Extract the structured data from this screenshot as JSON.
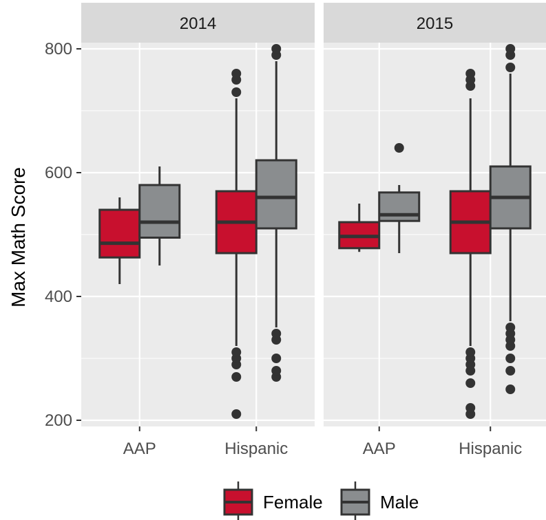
{
  "chart_data": {
    "type": "boxplot",
    "ylabel": "Max Math Score",
    "xlabel": "",
    "ylim": [
      190,
      810
    ],
    "yticks": [
      200,
      400,
      600,
      800
    ],
    "facets": [
      "2014",
      "2015"
    ],
    "categories": [
      "AAP",
      "Hispanic"
    ],
    "legend": {
      "position": "bottom",
      "entries": [
        {
          "name": "Female",
          "color": "#c8102e"
        },
        {
          "name": "Male",
          "color": "#8a8d8f"
        }
      ]
    },
    "series": [
      {
        "name": "Female",
        "color": "#c8102e",
        "boxes": {
          "2014": {
            "AAP": {
              "whisker_low": 420,
              "q1": 463,
              "median": 486,
              "q3": 540,
              "whisker_high": 560,
              "outliers": []
            },
            "Hispanic": {
              "whisker_low": 320,
              "q1": 470,
              "median": 520,
              "q3": 570,
              "whisker_high": 720,
              "outliers": [
                210,
                270,
                290,
                300,
                310,
                730,
                750,
                760
              ]
            }
          },
          "2015": {
            "AAP": {
              "whisker_low": 472,
              "q1": 478,
              "median": 497,
              "q3": 520,
              "whisker_high": 550,
              "outliers": []
            },
            "Hispanic": {
              "whisker_low": 320,
              "q1": 470,
              "median": 520,
              "q3": 570,
              "whisker_high": 720,
              "outliers": [
                210,
                220,
                260,
                280,
                290,
                300,
                310,
                740,
                750,
                760
              ]
            }
          }
        }
      },
      {
        "name": "Male",
        "color": "#8a8d8f",
        "boxes": {
          "2014": {
            "AAP": {
              "whisker_low": 450,
              "q1": 495,
              "median": 520,
              "q3": 580,
              "whisker_high": 610,
              "outliers": []
            },
            "Hispanic": {
              "whisker_low": 350,
              "q1": 510,
              "median": 560,
              "q3": 620,
              "whisker_high": 780,
              "outliers": [
                270,
                280,
                300,
                330,
                340,
                790,
                800
              ]
            }
          },
          "2015": {
            "AAP": {
              "whisker_low": 470,
              "q1": 522,
              "median": 532,
              "q3": 568,
              "whisker_high": 580,
              "outliers": [
                640
              ]
            },
            "Hispanic": {
              "whisker_low": 360,
              "q1": 510,
              "median": 560,
              "q3": 610,
              "whisker_high": 760,
              "outliers": [
                250,
                280,
                300,
                320,
                330,
                340,
                350,
                770,
                790,
                800
              ]
            }
          }
        }
      }
    ]
  }
}
